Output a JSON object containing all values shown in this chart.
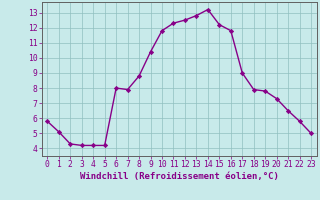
{
  "x": [
    0,
    1,
    2,
    3,
    4,
    5,
    6,
    7,
    8,
    9,
    10,
    11,
    12,
    13,
    14,
    15,
    16,
    17,
    18,
    19,
    20,
    21,
    22,
    23
  ],
  "y": [
    5.8,
    5.1,
    4.3,
    4.2,
    4.2,
    4.2,
    8.0,
    7.9,
    8.8,
    10.4,
    11.8,
    12.3,
    12.5,
    12.8,
    13.2,
    12.2,
    11.8,
    9.0,
    7.9,
    7.8,
    7.3,
    6.5,
    5.8,
    5.0
  ],
  "line_color": "#880088",
  "marker": "D",
  "marker_size": 2.2,
  "linewidth": 1.0,
  "xlabel": "Windchill (Refroidissement éolien,°C)",
  "xlabel_fontsize": 6.5,
  "xlabel_color": "#880088",
  "bg_color": "#c8eaea",
  "grid_color": "#90c0c0",
  "tick_color": "#880088",
  "spine_color": "#606060",
  "ylim": [
    3.5,
    13.7
  ],
  "yticks": [
    4,
    5,
    6,
    7,
    8,
    9,
    10,
    11,
    12,
    13
  ],
  "xlim": [
    -0.5,
    23.5
  ],
  "xticks": [
    0,
    1,
    2,
    3,
    4,
    5,
    6,
    7,
    8,
    9,
    10,
    11,
    12,
    13,
    14,
    15,
    16,
    17,
    18,
    19,
    20,
    21,
    22,
    23
  ],
  "tick_fontsize": 5.8
}
